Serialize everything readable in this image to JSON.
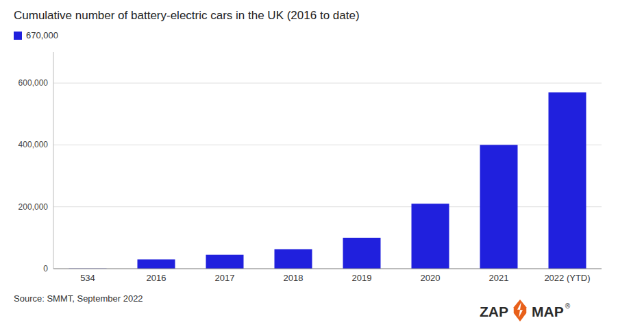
{
  "chart_data": {
    "type": "bar",
    "title": "Cumulative number of battery-electric cars in the UK (2016 to date)",
    "categories": [
      "534",
      "2016",
      "2017",
      "2018",
      "2019",
      "2020",
      "2021",
      "2022 (YTD)"
    ],
    "series": [
      {
        "name": "670,000",
        "color": "#2020dd",
        "values": [
          534,
          30000,
          45000,
          63000,
          100000,
          210000,
          400000,
          570000
        ]
      }
    ],
    "ylim": [
      0,
      700000
    ],
    "yticks": [
      0,
      {
        "value": 200000,
        "label": "200,000"
      },
      {
        "value": 400000,
        "label": "400,000"
      },
      {
        "value": 600000,
        "label": "600,000"
      }
    ],
    "grid": true,
    "legend": "top-left",
    "annotations": [
      "Source: SMMT, September 2022",
      "ZAP",
      "MAP",
      "®"
    ]
  }
}
